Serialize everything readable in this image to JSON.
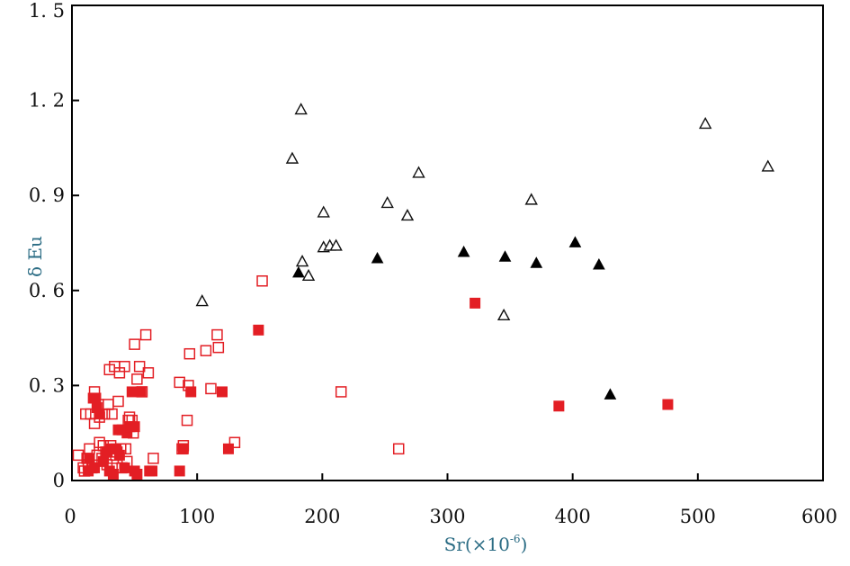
{
  "chart_data": {
    "type": "scatter",
    "xlabel": "Sr(×10",
    "xlabel_exp": "-6",
    "xlabel_close": ")",
    "ylabel": "δ Eu",
    "xlim": [
      0,
      600
    ],
    "ylim": [
      0,
      1.5
    ],
    "x_ticks": [
      "0",
      "100",
      "200",
      "300",
      "400",
      "500",
      "600"
    ],
    "y_ticks": [
      "0",
      "0. 3",
      "0. 6",
      "0. 9",
      "1. 2",
      "1. 5"
    ],
    "grid": false,
    "legend": "none",
    "series": [
      {
        "marker": "triangle-open",
        "color": "#111111",
        "points": [
          [
            104,
            0.565
          ],
          [
            176,
            1.015
          ],
          [
            183,
            1.17
          ],
          [
            184,
            0.69
          ],
          [
            189,
            0.645
          ],
          [
            201,
            0.845
          ],
          [
            201,
            0.735
          ],
          [
            206,
            0.74
          ],
          [
            211,
            0.74
          ],
          [
            252,
            0.875
          ],
          [
            268,
            0.835
          ],
          [
            277,
            0.97
          ],
          [
            345,
            0.52
          ],
          [
            367,
            0.885
          ],
          [
            506,
            1.125
          ],
          [
            556,
            0.99
          ]
        ]
      },
      {
        "marker": "triangle-filled",
        "color": "#000000",
        "points": [
          [
            181,
            0.655
          ],
          [
            244,
            0.7
          ],
          [
            313,
            0.72
          ],
          [
            346,
            0.705
          ],
          [
            371,
            0.685
          ],
          [
            402,
            0.75
          ],
          [
            421,
            0.68
          ],
          [
            430,
            0.27
          ]
        ]
      },
      {
        "marker": "square-open",
        "color": "#e31e24",
        "points": [
          [
            5,
            0.08
          ],
          [
            9,
            0.04
          ],
          [
            10,
            0.03
          ],
          [
            11,
            0.21
          ],
          [
            12,
            0.07
          ],
          [
            13,
            0.05
          ],
          [
            14,
            0.1
          ],
          [
            15,
            0.21
          ],
          [
            16,
            0.04
          ],
          [
            18,
            0.28
          ],
          [
            18,
            0.18
          ],
          [
            20,
            0.08
          ],
          [
            21,
            0.24
          ],
          [
            22,
            0.12
          ],
          [
            22,
            0.2
          ],
          [
            24,
            0.07
          ],
          [
            25,
            0.11
          ],
          [
            26,
            0.21
          ],
          [
            27,
            0.09
          ],
          [
            28,
            0.05
          ],
          [
            29,
            0.24
          ],
          [
            30,
            0.35
          ],
          [
            31,
            0.11
          ],
          [
            32,
            0.21
          ],
          [
            33,
            0.07
          ],
          [
            34,
            0.36
          ],
          [
            35,
            0.08
          ],
          [
            36,
            0.09
          ],
          [
            37,
            0.25
          ],
          [
            38,
            0.34
          ],
          [
            39,
            0.1
          ],
          [
            40,
            0.04
          ],
          [
            42,
            0.36
          ],
          [
            43,
            0.1
          ],
          [
            44,
            0.06
          ],
          [
            45,
            0.19
          ],
          [
            46,
            0.2
          ],
          [
            48,
            0.19
          ],
          [
            49,
            0.15
          ],
          [
            50,
            0.43
          ],
          [
            52,
            0.32
          ],
          [
            54,
            0.36
          ],
          [
            56,
            0.28
          ],
          [
            59,
            0.46
          ],
          [
            61,
            0.34
          ],
          [
            65,
            0.07
          ],
          [
            86,
            0.31
          ],
          [
            88,
            0.1
          ],
          [
            89,
            0.11
          ],
          [
            92,
            0.19
          ],
          [
            93,
            0.3
          ],
          [
            94,
            0.4
          ],
          [
            107,
            0.41
          ],
          [
            111,
            0.29
          ],
          [
            116,
            0.46
          ],
          [
            117,
            0.42
          ],
          [
            130,
            0.12
          ],
          [
            152,
            0.63
          ],
          [
            215,
            0.28
          ],
          [
            261,
            0.1
          ]
        ]
      },
      {
        "marker": "square-filled",
        "color": "#e31e24",
        "points": [
          [
            13,
            0.03
          ],
          [
            14,
            0.07
          ],
          [
            17,
            0.26
          ],
          [
            18,
            0.04
          ],
          [
            19,
            0.26
          ],
          [
            20,
            0.23
          ],
          [
            22,
            0.21
          ],
          [
            25,
            0.06
          ],
          [
            28,
            0.09
          ],
          [
            30,
            0.03
          ],
          [
            31,
            0.1
          ],
          [
            33,
            0.02
          ],
          [
            35,
            0.1
          ],
          [
            37,
            0.16
          ],
          [
            38,
            0.08
          ],
          [
            40,
            0.16
          ],
          [
            42,
            0.04
          ],
          [
            44,
            0.15
          ],
          [
            46,
            0.17
          ],
          [
            47,
            0.17
          ],
          [
            48,
            0.28
          ],
          [
            50,
            0.17
          ],
          [
            50,
            0.03
          ],
          [
            52,
            0.02
          ],
          [
            55,
            0.28
          ],
          [
            62,
            0.03
          ],
          [
            64,
            0.03
          ],
          [
            86,
            0.03
          ],
          [
            89,
            0.1
          ],
          [
            95,
            0.28
          ],
          [
            120,
            0.28
          ],
          [
            125,
            0.1
          ],
          [
            149,
            0.475
          ],
          [
            322,
            0.56
          ],
          [
            389,
            0.235
          ],
          [
            476,
            0.24
          ]
        ]
      }
    ]
  }
}
